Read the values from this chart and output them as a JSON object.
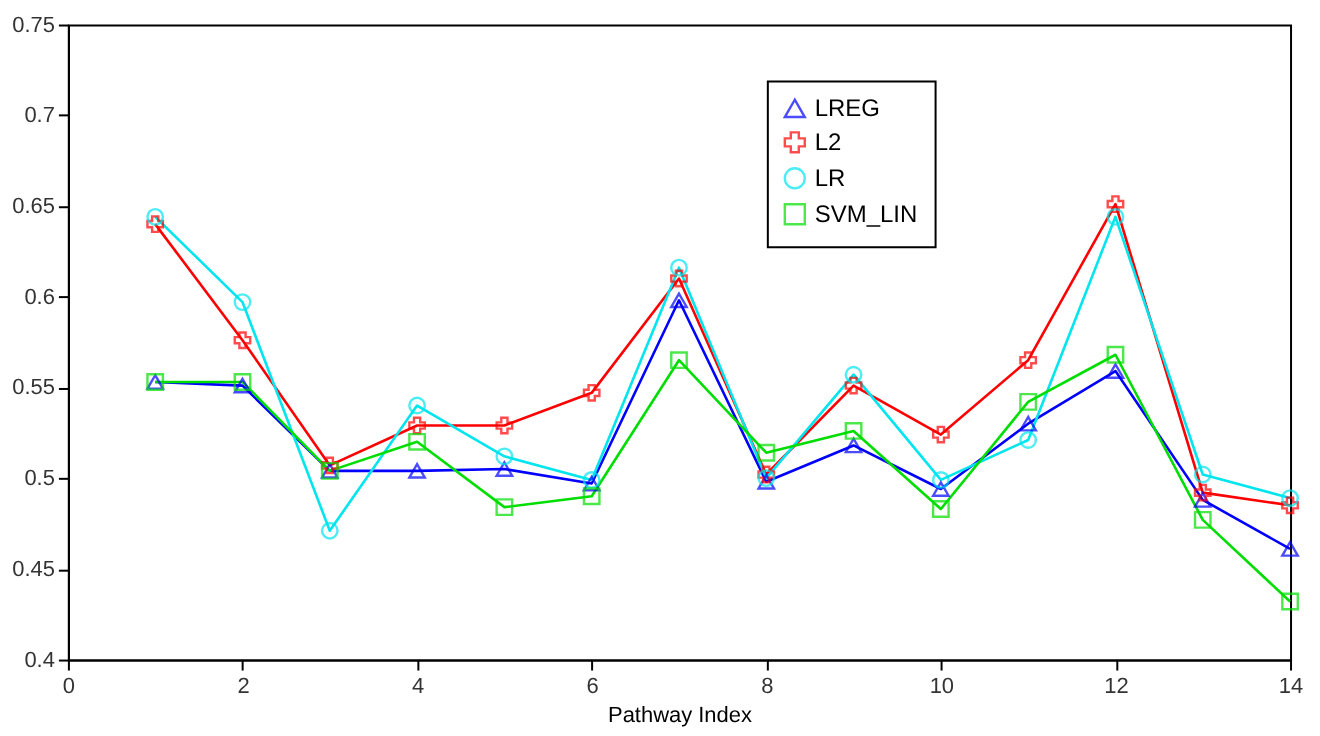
{
  "chart_data": {
    "type": "line",
    "xlabel": "Pathway Index",
    "x": [
      1,
      2,
      3,
      4,
      5,
      6,
      7,
      8,
      9,
      10,
      11,
      12,
      13,
      14
    ],
    "xlim": [
      0,
      14
    ],
    "xticks": [
      0,
      2,
      4,
      6,
      8,
      10,
      12,
      14
    ],
    "ylim": [
      0.4,
      0.75
    ],
    "yticks": [
      0.4,
      0.45,
      0.5,
      0.55,
      0.6,
      0.65,
      0.7,
      0.75
    ],
    "grid": false,
    "legend": "top right",
    "line_style": "solid",
    "series": [
      {
        "name": "LREG",
        "color": "#0000ff",
        "marker": "triangle",
        "values": [
          0.553,
          0.551,
          0.504,
          0.504,
          0.505,
          0.497,
          0.598,
          0.498,
          0.518,
          0.494,
          0.53,
          0.559,
          0.488,
          0.461
        ]
      },
      {
        "name": "L2",
        "color": "#ff0000",
        "marker": "cross",
        "values": [
          0.64,
          0.576,
          0.507,
          0.529,
          0.529,
          0.547,
          0.61,
          0.502,
          0.551,
          0.524,
          0.565,
          0.651,
          0.492,
          0.485
        ]
      },
      {
        "name": "LR",
        "color": "#00e5ee",
        "marker": "circle",
        "values": [
          0.644,
          0.597,
          0.471,
          0.54,
          0.512,
          0.499,
          0.616,
          0.5,
          0.557,
          0.499,
          0.521,
          0.644,
          0.502,
          0.489
        ]
      },
      {
        "name": "SVM_LIN",
        "color": "#00dd00",
        "marker": "square",
        "values": [
          0.553,
          0.553,
          0.504,
          0.52,
          0.484,
          0.49,
          0.565,
          0.514,
          0.526,
          0.483,
          0.542,
          0.568,
          0.477,
          0.432
        ]
      }
    ]
  }
}
